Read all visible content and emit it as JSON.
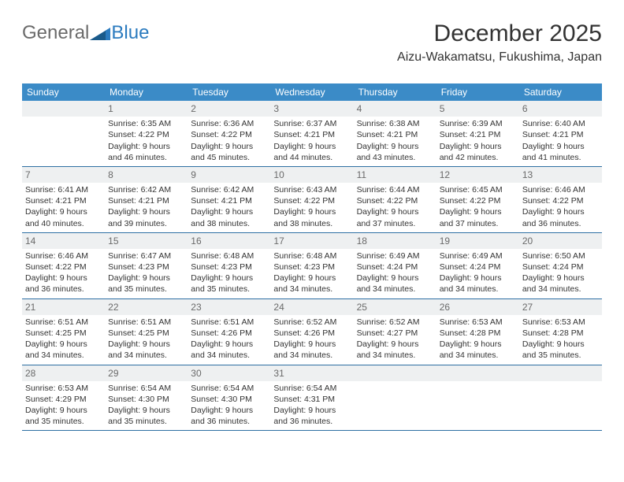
{
  "brand": {
    "general": "General",
    "blue": "Blue",
    "blue_color": "#2b7bbf",
    "gray_color": "#6a6a6a"
  },
  "header": {
    "title": "December 2025",
    "location": "Aizu-Wakamatsu, Fukushima, Japan"
  },
  "style": {
    "header_bg": "#3b8bc7",
    "header_text": "#ffffff",
    "daybar_bg": "#eef0f1",
    "week_border": "#2e6fa3",
    "body_text": "#333333",
    "day_number_color": "#6a6a6a",
    "font_day_number": 12,
    "font_info": 10.5
  },
  "dayHeaders": [
    "Sunday",
    "Monday",
    "Tuesday",
    "Wednesday",
    "Thursday",
    "Friday",
    "Saturday"
  ],
  "weeks": [
    [
      {
        "n": "",
        "sr": "",
        "ss": "",
        "dl": ""
      },
      {
        "n": "1",
        "sr": "Sunrise: 6:35 AM",
        "ss": "Sunset: 4:22 PM",
        "dl": "Daylight: 9 hours and 46 minutes."
      },
      {
        "n": "2",
        "sr": "Sunrise: 6:36 AM",
        "ss": "Sunset: 4:22 PM",
        "dl": "Daylight: 9 hours and 45 minutes."
      },
      {
        "n": "3",
        "sr": "Sunrise: 6:37 AM",
        "ss": "Sunset: 4:21 PM",
        "dl": "Daylight: 9 hours and 44 minutes."
      },
      {
        "n": "4",
        "sr": "Sunrise: 6:38 AM",
        "ss": "Sunset: 4:21 PM",
        "dl": "Daylight: 9 hours and 43 minutes."
      },
      {
        "n": "5",
        "sr": "Sunrise: 6:39 AM",
        "ss": "Sunset: 4:21 PM",
        "dl": "Daylight: 9 hours and 42 minutes."
      },
      {
        "n": "6",
        "sr": "Sunrise: 6:40 AM",
        "ss": "Sunset: 4:21 PM",
        "dl": "Daylight: 9 hours and 41 minutes."
      }
    ],
    [
      {
        "n": "7",
        "sr": "Sunrise: 6:41 AM",
        "ss": "Sunset: 4:21 PM",
        "dl": "Daylight: 9 hours and 40 minutes."
      },
      {
        "n": "8",
        "sr": "Sunrise: 6:42 AM",
        "ss": "Sunset: 4:21 PM",
        "dl": "Daylight: 9 hours and 39 minutes."
      },
      {
        "n": "9",
        "sr": "Sunrise: 6:42 AM",
        "ss": "Sunset: 4:21 PM",
        "dl": "Daylight: 9 hours and 38 minutes."
      },
      {
        "n": "10",
        "sr": "Sunrise: 6:43 AM",
        "ss": "Sunset: 4:22 PM",
        "dl": "Daylight: 9 hours and 38 minutes."
      },
      {
        "n": "11",
        "sr": "Sunrise: 6:44 AM",
        "ss": "Sunset: 4:22 PM",
        "dl": "Daylight: 9 hours and 37 minutes."
      },
      {
        "n": "12",
        "sr": "Sunrise: 6:45 AM",
        "ss": "Sunset: 4:22 PM",
        "dl": "Daylight: 9 hours and 37 minutes."
      },
      {
        "n": "13",
        "sr": "Sunrise: 6:46 AM",
        "ss": "Sunset: 4:22 PM",
        "dl": "Daylight: 9 hours and 36 minutes."
      }
    ],
    [
      {
        "n": "14",
        "sr": "Sunrise: 6:46 AM",
        "ss": "Sunset: 4:22 PM",
        "dl": "Daylight: 9 hours and 36 minutes."
      },
      {
        "n": "15",
        "sr": "Sunrise: 6:47 AM",
        "ss": "Sunset: 4:23 PM",
        "dl": "Daylight: 9 hours and 35 minutes."
      },
      {
        "n": "16",
        "sr": "Sunrise: 6:48 AM",
        "ss": "Sunset: 4:23 PM",
        "dl": "Daylight: 9 hours and 35 minutes."
      },
      {
        "n": "17",
        "sr": "Sunrise: 6:48 AM",
        "ss": "Sunset: 4:23 PM",
        "dl": "Daylight: 9 hours and 34 minutes."
      },
      {
        "n": "18",
        "sr": "Sunrise: 6:49 AM",
        "ss": "Sunset: 4:24 PM",
        "dl": "Daylight: 9 hours and 34 minutes."
      },
      {
        "n": "19",
        "sr": "Sunrise: 6:49 AM",
        "ss": "Sunset: 4:24 PM",
        "dl": "Daylight: 9 hours and 34 minutes."
      },
      {
        "n": "20",
        "sr": "Sunrise: 6:50 AM",
        "ss": "Sunset: 4:24 PM",
        "dl": "Daylight: 9 hours and 34 minutes."
      }
    ],
    [
      {
        "n": "21",
        "sr": "Sunrise: 6:51 AM",
        "ss": "Sunset: 4:25 PM",
        "dl": "Daylight: 9 hours and 34 minutes."
      },
      {
        "n": "22",
        "sr": "Sunrise: 6:51 AM",
        "ss": "Sunset: 4:25 PM",
        "dl": "Daylight: 9 hours and 34 minutes."
      },
      {
        "n": "23",
        "sr": "Sunrise: 6:51 AM",
        "ss": "Sunset: 4:26 PM",
        "dl": "Daylight: 9 hours and 34 minutes."
      },
      {
        "n": "24",
        "sr": "Sunrise: 6:52 AM",
        "ss": "Sunset: 4:26 PM",
        "dl": "Daylight: 9 hours and 34 minutes."
      },
      {
        "n": "25",
        "sr": "Sunrise: 6:52 AM",
        "ss": "Sunset: 4:27 PM",
        "dl": "Daylight: 9 hours and 34 minutes."
      },
      {
        "n": "26",
        "sr": "Sunrise: 6:53 AM",
        "ss": "Sunset: 4:28 PM",
        "dl": "Daylight: 9 hours and 34 minutes."
      },
      {
        "n": "27",
        "sr": "Sunrise: 6:53 AM",
        "ss": "Sunset: 4:28 PM",
        "dl": "Daylight: 9 hours and 35 minutes."
      }
    ],
    [
      {
        "n": "28",
        "sr": "Sunrise: 6:53 AM",
        "ss": "Sunset: 4:29 PM",
        "dl": "Daylight: 9 hours and 35 minutes."
      },
      {
        "n": "29",
        "sr": "Sunrise: 6:54 AM",
        "ss": "Sunset: 4:30 PM",
        "dl": "Daylight: 9 hours and 35 minutes."
      },
      {
        "n": "30",
        "sr": "Sunrise: 6:54 AM",
        "ss": "Sunset: 4:30 PM",
        "dl": "Daylight: 9 hours and 36 minutes."
      },
      {
        "n": "31",
        "sr": "Sunrise: 6:54 AM",
        "ss": "Sunset: 4:31 PM",
        "dl": "Daylight: 9 hours and 36 minutes."
      },
      {
        "n": "",
        "sr": "",
        "ss": "",
        "dl": ""
      },
      {
        "n": "",
        "sr": "",
        "ss": "",
        "dl": ""
      },
      {
        "n": "",
        "sr": "",
        "ss": "",
        "dl": ""
      }
    ]
  ]
}
